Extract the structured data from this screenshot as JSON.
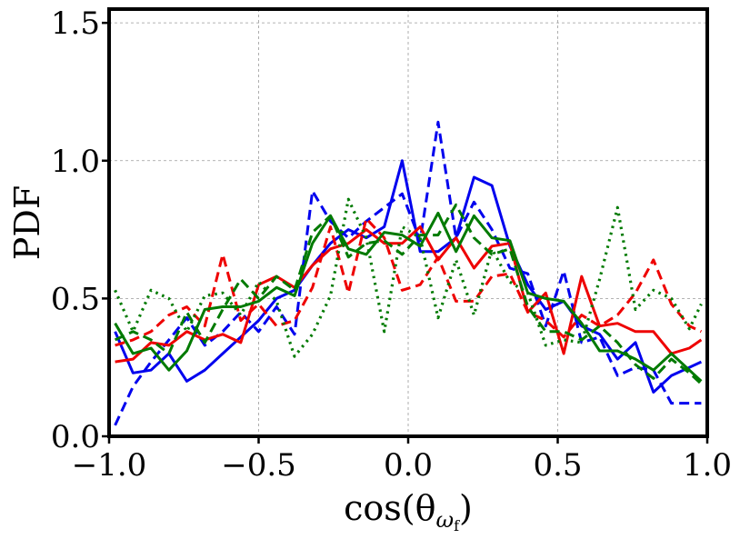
{
  "chart_data": {
    "type": "line",
    "title": "",
    "xlabel": "cos(θ_ωf)",
    "xlabel_base": "cos(θ",
    "xlabel_sub": "ω",
    "xlabel_subsub": "f",
    "xlabel_close": ")",
    "ylabel": "PDF",
    "xlim": [
      -1.0,
      1.0
    ],
    "ylim": [
      0.0,
      1.55
    ],
    "xticks": [
      -1.0,
      -0.5,
      0.0,
      0.5,
      1.0
    ],
    "xtick_labels": [
      "−1.0",
      "−0.5",
      "0.0",
      "0.5",
      "1.0"
    ],
    "yticks": [
      0.0,
      0.5,
      1.0,
      1.5
    ],
    "ytick_labels": [
      "0.0",
      "0.5",
      "1.0",
      "1.5"
    ],
    "grid": true,
    "x": [
      -0.98,
      -0.92,
      -0.86,
      -0.8,
      -0.74,
      -0.68,
      -0.62,
      -0.56,
      -0.5,
      -0.44,
      -0.38,
      -0.32,
      -0.26,
      -0.2,
      -0.14,
      -0.08,
      -0.02,
      0.04,
      0.1,
      0.16,
      0.22,
      0.28,
      0.34,
      0.4,
      0.46,
      0.52,
      0.58,
      0.64,
      0.7,
      0.76,
      0.82,
      0.88,
      0.94,
      0.98
    ],
    "series": [
      {
        "name": "blue-solid",
        "color": "#0000ee",
        "style": "solid",
        "values": [
          0.38,
          0.23,
          0.24,
          0.3,
          0.2,
          0.24,
          0.3,
          0.36,
          0.42,
          0.5,
          0.53,
          0.62,
          0.7,
          0.75,
          0.72,
          0.76,
          1.0,
          0.67,
          0.67,
          0.72,
          0.94,
          0.91,
          0.69,
          0.55,
          0.46,
          0.49,
          0.4,
          0.37,
          0.28,
          0.34,
          0.16,
          0.22,
          0.25,
          0.27
        ]
      },
      {
        "name": "blue-dashed",
        "color": "#0000ee",
        "style": "dashed",
        "values": [
          0.04,
          0.18,
          0.27,
          0.35,
          0.43,
          0.33,
          0.38,
          0.45,
          0.38,
          0.47,
          0.37,
          0.89,
          0.78,
          0.72,
          0.78,
          0.83,
          0.88,
          0.71,
          1.14,
          0.72,
          0.85,
          0.75,
          0.61,
          0.59,
          0.4,
          0.6,
          0.34,
          0.36,
          0.22,
          0.25,
          0.24,
          0.12,
          0.12,
          0.12
        ]
      },
      {
        "name": "red-solid",
        "color": "#ee0000",
        "style": "solid",
        "values": [
          0.27,
          0.28,
          0.34,
          0.33,
          0.38,
          0.35,
          0.37,
          0.34,
          0.55,
          0.58,
          0.54,
          0.62,
          0.68,
          0.7,
          0.75,
          0.7,
          0.7,
          0.76,
          0.64,
          0.72,
          0.61,
          0.69,
          0.7,
          0.45,
          0.52,
          0.3,
          0.58,
          0.4,
          0.41,
          0.38,
          0.38,
          0.3,
          0.32,
          0.35
        ]
      },
      {
        "name": "red-dashed",
        "color": "#ee0000",
        "style": "dashed",
        "values": [
          0.33,
          0.35,
          0.38,
          0.44,
          0.47,
          0.4,
          0.66,
          0.42,
          0.48,
          0.4,
          0.42,
          0.54,
          0.76,
          0.52,
          0.79,
          0.72,
          0.53,
          0.55,
          0.65,
          0.49,
          0.49,
          0.58,
          0.59,
          0.45,
          0.42,
          0.36,
          0.44,
          0.4,
          0.44,
          0.52,
          0.64,
          0.48,
          0.4,
          0.38
        ]
      },
      {
        "name": "green-solid",
        "color": "#007a00",
        "style": "solid",
        "values": [
          0.41,
          0.3,
          0.32,
          0.24,
          0.31,
          0.46,
          0.47,
          0.47,
          0.49,
          0.54,
          0.51,
          0.7,
          0.8,
          0.68,
          0.66,
          0.74,
          0.73,
          0.69,
          0.81,
          0.67,
          0.8,
          0.72,
          0.71,
          0.52,
          0.5,
          0.49,
          0.41,
          0.31,
          0.31,
          0.28,
          0.24,
          0.3,
          0.24,
          0.2
        ]
      },
      {
        "name": "green-dashed",
        "color": "#007a00",
        "style": "dashed",
        "values": [
          0.35,
          0.38,
          0.35,
          0.3,
          0.45,
          0.34,
          0.46,
          0.57,
          0.5,
          0.58,
          0.53,
          0.74,
          0.8,
          0.65,
          0.7,
          0.71,
          0.66,
          0.73,
          0.73,
          0.84,
          0.72,
          0.66,
          0.68,
          0.47,
          0.38,
          0.38,
          0.35,
          0.4,
          0.34,
          0.26,
          0.21,
          0.28,
          0.23,
          0.19
        ]
      },
      {
        "name": "green-dotted",
        "color": "#007a00",
        "style": "dotted",
        "values": [
          0.53,
          0.38,
          0.53,
          0.5,
          0.38,
          0.51,
          0.52,
          0.44,
          0.56,
          0.49,
          0.29,
          0.37,
          0.51,
          0.86,
          0.72,
          0.38,
          0.76,
          0.72,
          0.43,
          0.64,
          0.44,
          0.68,
          0.56,
          0.52,
          0.33,
          0.35,
          0.34,
          0.57,
          0.83,
          0.46,
          0.53,
          0.5,
          0.39,
          0.48
        ]
      }
    ]
  }
}
